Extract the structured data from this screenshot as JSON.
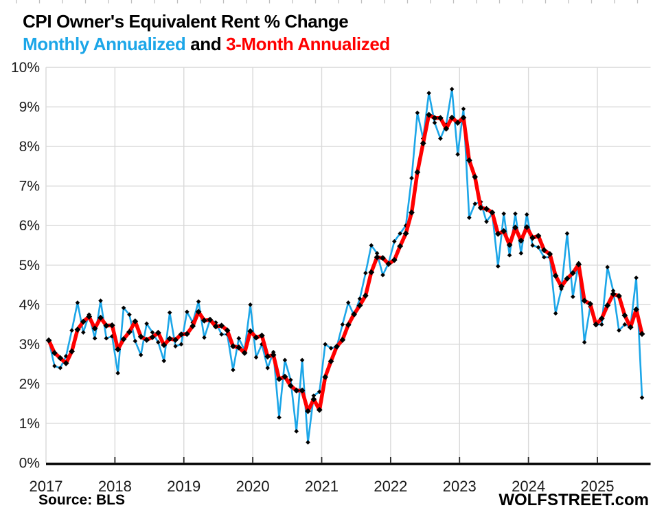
{
  "title": "CPI Owner's Equivalent Rent % Change",
  "subtitle": {
    "part1": "Monthly Annualized",
    "part2": " and ",
    "part3": "3-Month Annualized"
  },
  "source_label": "Source: BLS",
  "watermark": "WOLFSTREET.com",
  "colors": {
    "monthly_blue": "#1CA6E8",
    "three_month_red": "#FF0000",
    "marker_black": "#000000",
    "gridline_gray": "#D9D9D9",
    "axis_black": "#000000",
    "tick_gray": "#BFBFBF",
    "text_black": "#1A1A1A"
  },
  "chart_data": {
    "type": "line",
    "frequency": "monthly",
    "start": "2017-01",
    "end": "2025-08",
    "title": "CPI Owner's Equivalent Rent % Change",
    "xlabel": "",
    "ylabel": "",
    "ylim": [
      0,
      10
    ],
    "grid": true,
    "legend_position": "subtitle",
    "x_tick_labels": [
      "2017",
      "2018",
      "2019",
      "2020",
      "2021",
      "2022",
      "2023",
      "2024",
      "2025"
    ],
    "y_tick_labels": [
      "0%",
      "1%",
      "2%",
      "3%",
      "4%",
      "5%",
      "6%",
      "7%",
      "8%",
      "9%",
      "10%"
    ],
    "series": [
      {
        "name": "Monthly Annualized",
        "color": "#1CA6E8",
        "values": [
          3.1,
          2.45,
          2.4,
          2.7,
          3.35,
          4.05,
          3.3,
          3.75,
          3.15,
          4.1,
          3.15,
          3.2,
          2.27,
          3.92,
          3.75,
          3.08,
          2.73,
          3.52,
          3.3,
          3.05,
          2.58,
          3.8,
          2.95,
          3.0,
          3.82,
          3.55,
          4.08,
          3.17,
          3.62,
          3.55,
          3.25,
          3.25,
          2.35,
          3.15,
          2.85,
          4.0,
          2.67,
          3.0,
          2.4,
          2.8,
          1.15,
          2.6,
          2.1,
          0.8,
          2.6,
          0.52,
          1.7,
          1.8,
          3.0,
          2.9,
          2.93,
          3.5,
          4.05,
          3.73,
          4.15,
          4.8,
          5.5,
          5.3,
          4.75,
          5.05,
          5.6,
          5.8,
          6.0,
          7.2,
          8.85,
          8.2,
          9.35,
          8.6,
          8.2,
          8.55,
          9.45,
          7.8,
          8.95,
          6.2,
          6.55,
          6.6,
          6.1,
          6.3,
          4.97,
          6.3,
          5.25,
          6.3,
          5.3,
          6.28,
          5.5,
          5.45,
          5.2,
          5.2,
          3.78,
          4.4,
          5.8,
          4.2,
          5.05,
          3.05,
          3.95,
          3.5,
          3.5,
          4.95,
          4.35,
          3.35,
          3.5,
          3.45,
          4.68,
          1.65
        ]
      },
      {
        "name": "3-Month Annualized",
        "color": "#FF0000",
        "values": [
          3.1,
          2.78,
          2.65,
          2.52,
          2.82,
          3.37,
          3.57,
          3.7,
          3.4,
          3.67,
          3.47,
          3.48,
          2.87,
          3.13,
          3.31,
          3.58,
          3.19,
          3.11,
          3.18,
          3.29,
          2.98,
          3.14,
          3.11,
          3.25,
          3.26,
          3.46,
          3.82,
          3.6,
          3.62,
          3.45,
          3.47,
          3.35,
          2.95,
          2.92,
          2.78,
          3.33,
          3.17,
          3.22,
          2.69,
          2.73,
          2.12,
          2.18,
          1.95,
          1.83,
          1.83,
          1.31,
          1.61,
          1.34,
          2.17,
          2.57,
          2.94,
          3.11,
          3.49,
          3.76,
          3.98,
          4.23,
          4.82,
          5.2,
          5.18,
          5.03,
          5.13,
          5.48,
          5.8,
          6.33,
          7.35,
          8.08,
          8.8,
          8.72,
          8.72,
          8.45,
          8.73,
          8.6,
          8.73,
          7.65,
          7.23,
          6.45,
          6.42,
          6.33,
          5.79,
          5.86,
          5.51,
          5.95,
          5.62,
          5.96,
          5.69,
          5.74,
          5.38,
          5.28,
          4.73,
          4.46,
          4.66,
          4.8,
          5.02,
          4.1,
          4.02,
          3.5,
          3.65,
          3.98,
          4.27,
          4.22,
          3.73,
          3.43,
          3.88,
          3.26
        ]
      }
    ]
  }
}
